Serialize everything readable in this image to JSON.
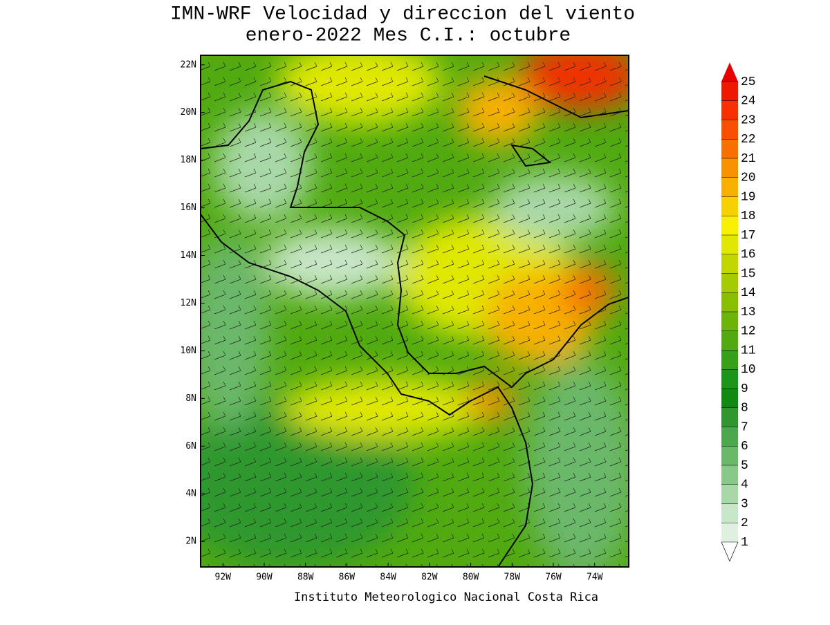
{
  "title": [
    "IMN-WRF Velocidad y direccion del viento",
    "enero-2022 Mes C.I.: octubre"
  ],
  "credit": "Instituto Meteorologico Nacional Costa Rica",
  "map": {
    "xlim": [
      -93.08,
      -72.35
    ],
    "ylim": [
      0.93,
      22.4
    ],
    "xticks": [
      {
        "value": -92,
        "label": "92W"
      },
      {
        "value": -90,
        "label": "90W"
      },
      {
        "value": -88,
        "label": "88W"
      },
      {
        "value": -86,
        "label": "86W"
      },
      {
        "value": -84,
        "label": "84W"
      },
      {
        "value": -82,
        "label": "82W"
      },
      {
        "value": -80,
        "label": "80W"
      },
      {
        "value": -78,
        "label": "78W"
      },
      {
        "value": -76,
        "label": "76W"
      },
      {
        "value": -74,
        "label": "74W"
      }
    ],
    "yticks": [
      {
        "value": 2,
        "label": "2N"
      },
      {
        "value": 4,
        "label": "4N"
      },
      {
        "value": 6,
        "label": "6N"
      },
      {
        "value": 8,
        "label": "8N"
      },
      {
        "value": 10,
        "label": "10N"
      },
      {
        "value": 12,
        "label": "12N"
      },
      {
        "value": 14,
        "label": "14N"
      },
      {
        "value": 16,
        "label": "16N"
      },
      {
        "value": 18,
        "label": "18N"
      },
      {
        "value": 20,
        "label": "20N"
      },
      {
        "value": 22,
        "label": "22N"
      }
    ]
  },
  "colorbar": {
    "levels": [
      1,
      2,
      3,
      4,
      5,
      6,
      7,
      8,
      9,
      10,
      11,
      12,
      13,
      14,
      15,
      16,
      17,
      18,
      19,
      20,
      21,
      22,
      23,
      24,
      25
    ],
    "colors": [
      "#e0f0e0",
      "#c8e6c8",
      "#a8d8a8",
      "#88c888",
      "#6ab86a",
      "#4ca84c",
      "#2e982e",
      "#108a10",
      "#1a961a",
      "#36a018",
      "#50aa10",
      "#6cb408",
      "#88c000",
      "#a4cc00",
      "#c0d800",
      "#e0e800",
      "#f8f000",
      "#f8d000",
      "#f8b000",
      "#f89000",
      "#f87000",
      "#f85000",
      "#f83000",
      "#f01800",
      "#e80000"
    ]
  }
}
